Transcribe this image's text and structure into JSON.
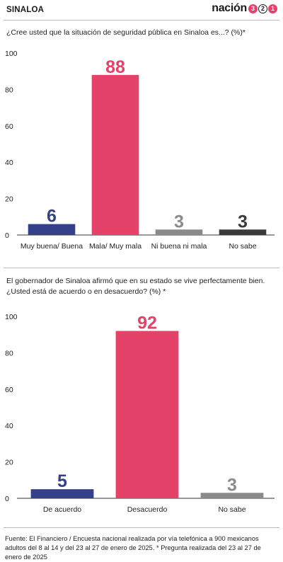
{
  "header": {
    "topic": "SINALOA",
    "brand_name": "nación",
    "brand_digits": [
      "3",
      "2",
      "1"
    ]
  },
  "colors": {
    "blue": "#34418a",
    "red": "#e5426a",
    "gray": "#8a8a8a",
    "dark": "#3a3a3a"
  },
  "chart_data": [
    {
      "type": "bar",
      "title": "¿Cree usted que la situación de seguridad pública en Sinaloa es...? (%)*",
      "categories": [
        "Muy buena/ Buena",
        "Mala/ Muy mala",
        "Ni buena ni mala",
        "No sabe"
      ],
      "values": [
        6,
        88,
        3,
        3
      ],
      "value_labels": [
        "6",
        "88",
        "3",
        "3"
      ],
      "bar_colors": [
        "#34418a",
        "#e5426a",
        "#8a8a8a",
        "#3a3a3a"
      ],
      "ylim": [
        0,
        100
      ],
      "yticks": [
        "0",
        "20",
        "40",
        "60",
        "80",
        "100"
      ],
      "grid": false,
      "legend": "none"
    },
    {
      "type": "bar",
      "title": "El gobernador de Sinaloa afirmó que en su estado se vive perfectamente bien. ¿Usted está de acuerdo o en desacuerdo? (%) *",
      "categories": [
        "De acuerdo",
        "Desacuerdo",
        "No sabe"
      ],
      "values": [
        5,
        92,
        3
      ],
      "value_labels": [
        "5",
        "92",
        "3"
      ],
      "bar_colors": [
        "#34418a",
        "#e5426a",
        "#8a8a8a"
      ],
      "ylim": [
        0,
        100
      ],
      "yticks": [
        "0",
        "20",
        "40",
        "60",
        "80",
        "100"
      ],
      "grid": false,
      "legend": "none"
    }
  ],
  "source": "Fuente: El Financiero / Encuesta nacional realizada por vía telefónica a 900 mexicanos adultos del 8 al 14 y del 23 al 27 de enero de 2025. * Pregunta realizada del 23 al 27 de enero de 2025"
}
